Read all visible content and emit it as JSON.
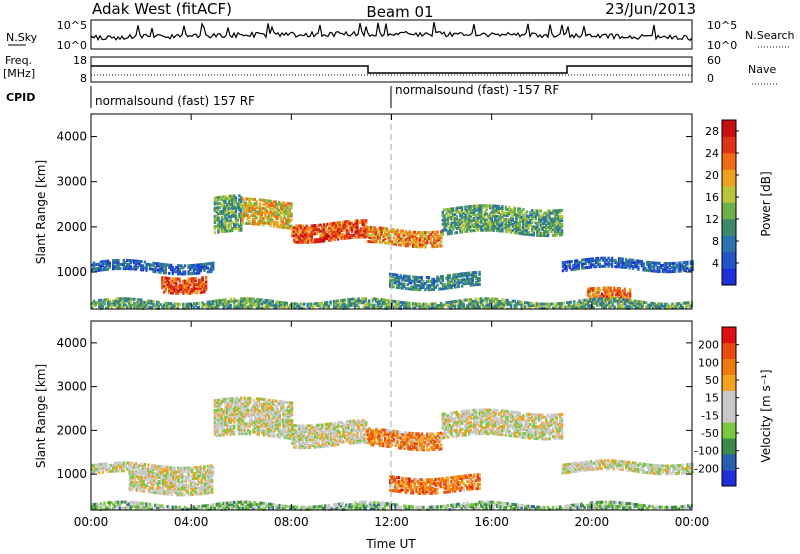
{
  "header": {
    "station": "Adak West (fitACF)",
    "beam": "Beam 01",
    "date": "23/Jun/2013"
  },
  "strip": {
    "nsky_label": "N.Sky",
    "nsky_ticks": [
      "10^5",
      "10^0"
    ],
    "nsearch_label": "N.Search",
    "nsearch_ticks": [
      "10^5",
      "10^0"
    ],
    "freq_label_1": "Freq.",
    "freq_label_2": "[MHz]",
    "freq_ticks": [
      "18",
      "8"
    ],
    "nave_label": "Nave",
    "nave_ticks": [
      "60",
      "0"
    ],
    "cpid_label": "CPID",
    "cpid_segments": [
      {
        "text": "normalsound (fast) 157 RF",
        "start_hour": 0,
        "end_hour": 12
      },
      {
        "text": "normalsound (fast) -157 RF",
        "start_hour": 12,
        "end_hour": 24
      }
    ]
  },
  "colors": {
    "power": [
      "#1f2fdc",
      "#2255c8",
      "#2a73b0",
      "#3c8a6c",
      "#6cb04c",
      "#b8c53a",
      "#f0a020",
      "#f06a18",
      "#e03018",
      "#c80f0f"
    ],
    "velocity": [
      "#1f2fdc",
      "#2a5fb0",
      "#3a8a4a",
      "#7ac840",
      "#c8c8c8",
      "#c8c8c8",
      "#f5a21e",
      "#f07a10",
      "#e84a10",
      "#e01010"
    ]
  },
  "chart_data": [
    {
      "type": "heatmap",
      "quantity": "Power",
      "xlabel": "Time UT",
      "ylabel": "Slant Range [km]",
      "x_ticks": [
        "00:00",
        "04:00",
        "08:00",
        "12:00",
        "16:00",
        "20:00",
        "00:00"
      ],
      "x_range_hours": [
        0,
        24
      ],
      "y_ticks": [
        1000,
        2000,
        3000,
        4000
      ],
      "y_range_km": [
        180,
        4500
      ],
      "colorbar_label": "Power [dB]",
      "colorbar_ticks": [
        4,
        8,
        12,
        16,
        20,
        24,
        28
      ],
      "colorbar_range": [
        0,
        30
      ],
      "echo_bands": [
        {
          "t0": 0.0,
          "t1": 4.9,
          "r0": 1050,
          "r1": 1250,
          "level": 0.2
        },
        {
          "t0": 2.8,
          "t1": 4.6,
          "r0": 620,
          "r1": 980,
          "level": 0.8
        },
        {
          "t0": 4.9,
          "t1": 6.0,
          "r0": 1900,
          "r1": 2700,
          "level": 0.4
        },
        {
          "t0": 6.0,
          "t1": 8.0,
          "r0": 2050,
          "r1": 2600,
          "level": 0.6
        },
        {
          "t0": 8.0,
          "t1": 11.0,
          "r0": 1750,
          "r1": 2150,
          "level": 0.8
        },
        {
          "t0": 11.0,
          "t1": 14.0,
          "r0": 1650,
          "r1": 2000,
          "level": 0.7
        },
        {
          "t0": 14.0,
          "t1": 18.8,
          "r0": 1900,
          "r1": 2450,
          "level": 0.4
        },
        {
          "t0": 11.9,
          "t1": 15.5,
          "r0": 700,
          "r1": 1000,
          "level": 0.3
        },
        {
          "t0": 18.8,
          "t1": 24.0,
          "r0": 1100,
          "r1": 1300,
          "level": 0.2
        },
        {
          "t0": 19.8,
          "t1": 21.5,
          "r0": 350,
          "r1": 650,
          "level": 0.75
        },
        {
          "t0": 0.0,
          "t1": 24.0,
          "r0": 200,
          "r1": 420,
          "level": 0.4
        }
      ]
    },
    {
      "type": "heatmap",
      "quantity": "Velocity",
      "xlabel": "Time UT",
      "ylabel": "Slant Range [km]",
      "x_ticks": [
        "00:00",
        "04:00",
        "08:00",
        "12:00",
        "16:00",
        "20:00",
        "00:00"
      ],
      "x_range_hours": [
        0,
        24
      ],
      "y_ticks": [
        1000,
        2000,
        3000,
        4000
      ],
      "y_range_km": [
        180,
        4500
      ],
      "colorbar_label": "Velocity [m s⁻¹]",
      "colorbar_ticks": [
        200,
        100,
        50,
        15,
        -15,
        -50,
        -100,
        -200
      ],
      "colorbar_range": [
        -250,
        250
      ],
      "echo_bands": [
        {
          "t0": 0.0,
          "t1": 4.9,
          "r0": 1050,
          "r1": 1250,
          "level": 0.5
        },
        {
          "t0": 1.5,
          "t1": 4.8,
          "r0": 620,
          "r1": 1050,
          "level": 0.5
        },
        {
          "t0": 4.9,
          "t1": 8.0,
          "r0": 1900,
          "r1": 2750,
          "level": 0.5
        },
        {
          "t0": 8.0,
          "t1": 11.0,
          "r0": 1700,
          "r1": 2200,
          "level": 0.5
        },
        {
          "t0": 11.0,
          "t1": 14.0,
          "r0": 1650,
          "r1": 2050,
          "level": 0.72
        },
        {
          "t0": 14.0,
          "t1": 18.8,
          "r0": 1900,
          "r1": 2450,
          "level": 0.5
        },
        {
          "t0": 11.9,
          "t1": 15.5,
          "r0": 650,
          "r1": 1000,
          "level": 0.75
        },
        {
          "t0": 18.8,
          "t1": 24.0,
          "r0": 1100,
          "r1": 1300,
          "level": 0.5
        },
        {
          "t0": 0.0,
          "t1": 24.0,
          "r0": 200,
          "r1": 380,
          "level": 0.35
        }
      ]
    }
  ]
}
